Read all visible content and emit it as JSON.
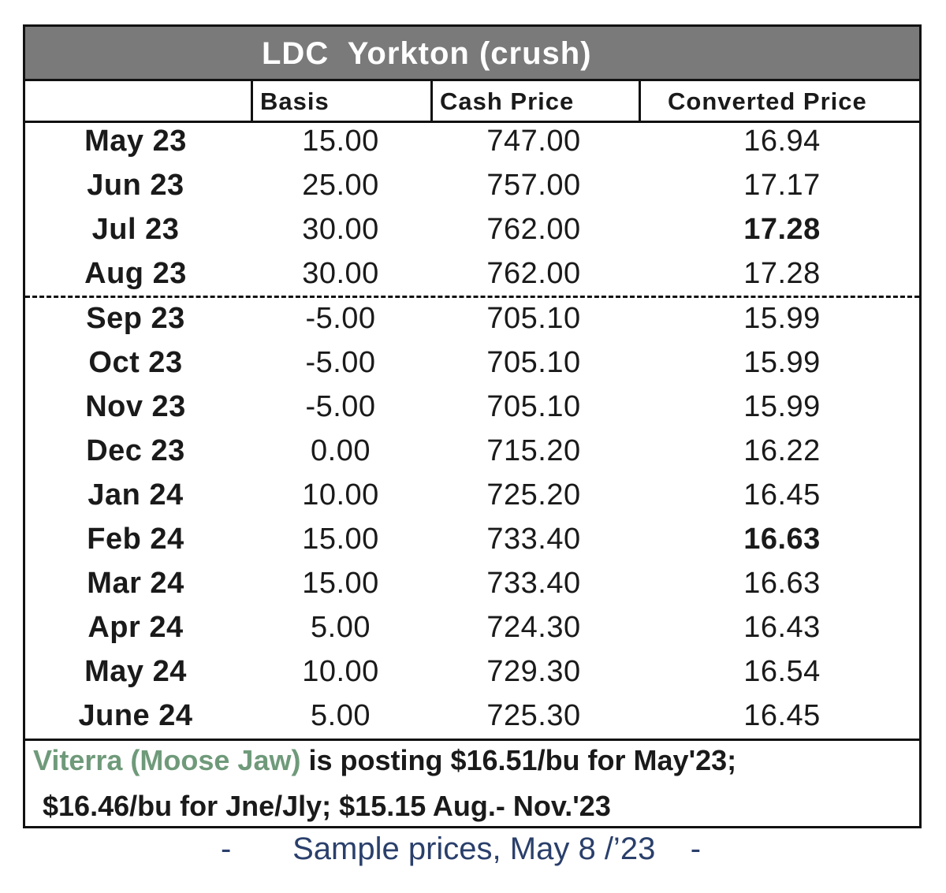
{
  "title": "LDC  Yorkton (crush)",
  "headers": {
    "month": "",
    "basis": "Basis",
    "cash": "Cash Price",
    "converted": "Converted Price"
  },
  "rows": [
    {
      "month": "May 23",
      "basis": "15.00",
      "cash": "747.00",
      "converted": "16.94"
    },
    {
      "month": "Jun 23",
      "basis": "25.00",
      "cash": "757.00",
      "converted": "17.17"
    },
    {
      "month": "Jul 23",
      "basis": "30.00",
      "cash": "762.00",
      "converted": "17.28"
    },
    {
      "month": "Aug 23",
      "basis": "30.00",
      "cash": "762.00",
      "converted": "17.28"
    },
    {
      "month": "Sep 23",
      "basis": "-5.00",
      "cash": "705.10",
      "converted": "15.99"
    },
    {
      "month": "Oct 23",
      "basis": "-5.00",
      "cash": "705.10",
      "converted": "15.99"
    },
    {
      "month": "Nov 23",
      "basis": "-5.00",
      "cash": "705.10",
      "converted": "15.99"
    },
    {
      "month": "Dec 23",
      "basis": "0.00",
      "cash": "715.20",
      "converted": "16.22"
    },
    {
      "month": "Jan 24",
      "basis": "10.00",
      "cash": "725.20",
      "converted": "16.45"
    },
    {
      "month": "Feb 24",
      "basis": "15.00",
      "cash": "733.40",
      "converted": "16.63"
    },
    {
      "month": "Mar 24",
      "basis": "15.00",
      "cash": "733.40",
      "converted": "16.63"
    },
    {
      "month": "Apr 24",
      "basis": "5.00",
      "cash": "724.30",
      "converted": "16.43"
    },
    {
      "month": "May 24",
      "basis": "10.00",
      "cash": "729.30",
      "converted": "16.54"
    },
    {
      "month": "June 24",
      "basis": "5.00",
      "cash": "725.30",
      "converted": "16.45"
    }
  ],
  "footer": {
    "highlight": "Viterra (Moose Jaw)",
    "line1_rest": " is posting $16.51/bu for May'23;",
    "line2": "$16.46/bu for Jne/Jly; $15.15 Aug.- Nov.'23",
    "highlight_color": "#6f9a7a"
  },
  "caption": "-       Sample prices, May 8 /’23    -"
}
